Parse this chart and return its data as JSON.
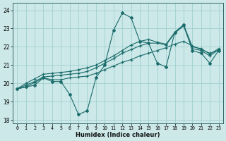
{
  "xlabel": "Humidex (Indice chaleur)",
  "bg_color": "#cce8e8",
  "grid_color": "#99cccc",
  "line_color": "#1a6b6b",
  "xlim": [
    -0.5,
    23.5
  ],
  "ylim": [
    17.8,
    24.4
  ],
  "yticks": [
    18,
    19,
    20,
    21,
    22,
    23,
    24
  ],
  "xticks": [
    0,
    1,
    2,
    3,
    4,
    5,
    6,
    7,
    8,
    9,
    10,
    11,
    12,
    13,
    14,
    15,
    16,
    17,
    18,
    19,
    20,
    21,
    22,
    23
  ],
  "main_y": [
    19.7,
    19.8,
    19.9,
    20.3,
    20.1,
    20.1,
    19.4,
    18.3,
    18.5,
    20.3,
    21.0,
    22.9,
    23.85,
    23.6,
    22.3,
    22.2,
    21.1,
    20.9,
    22.8,
    23.2,
    21.8,
    21.65,
    21.1,
    21.8
  ],
  "trend1_y": [
    19.7,
    19.8,
    20.05,
    20.3,
    20.2,
    20.2,
    20.3,
    20.35,
    20.4,
    20.55,
    20.75,
    20.95,
    21.15,
    21.3,
    21.5,
    21.65,
    21.8,
    21.95,
    22.15,
    22.3,
    22.05,
    21.85,
    21.65,
    21.8
  ],
  "trend2_y": [
    19.7,
    19.9,
    20.1,
    20.35,
    20.4,
    20.45,
    20.5,
    20.55,
    20.65,
    20.85,
    21.1,
    21.35,
    21.65,
    21.85,
    22.05,
    22.2,
    22.2,
    22.1,
    22.75,
    23.15,
    21.9,
    21.8,
    21.5,
    21.85
  ],
  "trend3_y": [
    19.7,
    20.0,
    20.25,
    20.5,
    20.55,
    20.6,
    20.65,
    20.75,
    20.85,
    21.0,
    21.25,
    21.5,
    21.8,
    22.1,
    22.3,
    22.4,
    22.25,
    22.15,
    22.8,
    23.2,
    22.0,
    21.9,
    21.6,
    21.9
  ]
}
